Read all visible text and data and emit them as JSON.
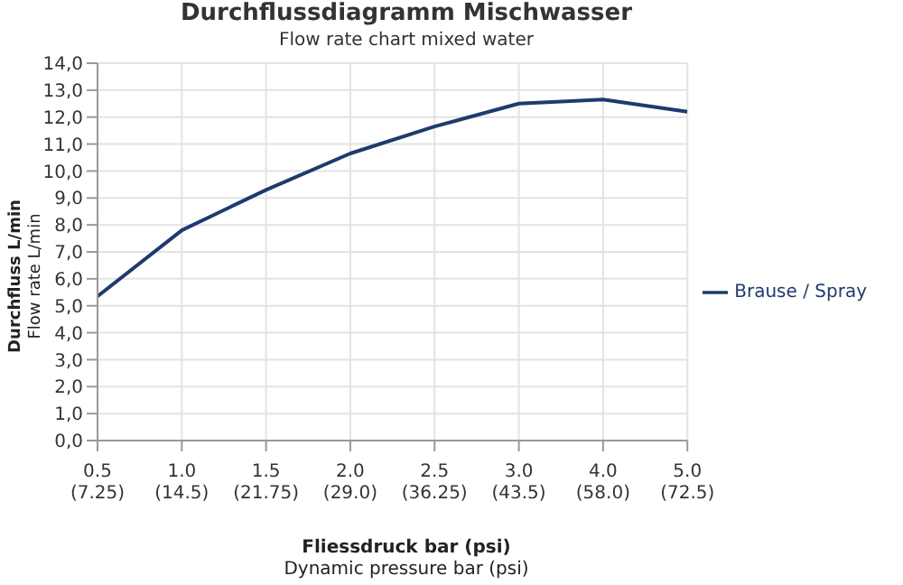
{
  "chart_data": {
    "type": "line",
    "title": "Durchflussdiagramm Mischwasser",
    "subtitle": "Flow rate chart mixed water",
    "xlabel": "Fliessdruck bar (psi)\nDynamic pressure bar (psi)",
    "ylabel": "Durchfluss L/min\nFlow rate L/min",
    "categories": [
      "0.5\n(7.25)",
      "1.0\n(14.5)",
      "1.5\n(21.75)",
      "2.0\n(29.0)",
      "2.5\n(36.25)",
      "3.0\n(43.5)",
      "4.0\n(58.0)",
      "5.0\n(72.5)"
    ],
    "series": [
      {
        "name": "Brause / Spray",
        "color": "#1f3a6e",
        "values": [
          5.35,
          7.8,
          9.3,
          10.65,
          11.65,
          12.5,
          12.65,
          12.2
        ]
      }
    ],
    "ylim": [
      0,
      14
    ],
    "yticks": [
      {
        "value": 0,
        "label": "0,0"
      },
      {
        "value": 1,
        "label": "1,0"
      },
      {
        "value": 2,
        "label": "2,0"
      },
      {
        "value": 3,
        "label": "3,0"
      },
      {
        "value": 4,
        "label": "4,0"
      },
      {
        "value": 5,
        "label": "5,0"
      },
      {
        "value": 6,
        "label": "6,0"
      },
      {
        "value": 7,
        "label": "7,0"
      },
      {
        "value": 8,
        "label": "8,0"
      },
      {
        "value": 9,
        "label": "9,0"
      },
      {
        "value": 10,
        "label": "10,0"
      },
      {
        "value": 11,
        "label": "11,0"
      },
      {
        "value": 12,
        "label": "12,0"
      },
      {
        "value": 13,
        "label": "13,0"
      },
      {
        "value": 14,
        "label": "14,0"
      }
    ],
    "grid": true,
    "legend": "right",
    "marker": "none",
    "line_style": "solid"
  }
}
